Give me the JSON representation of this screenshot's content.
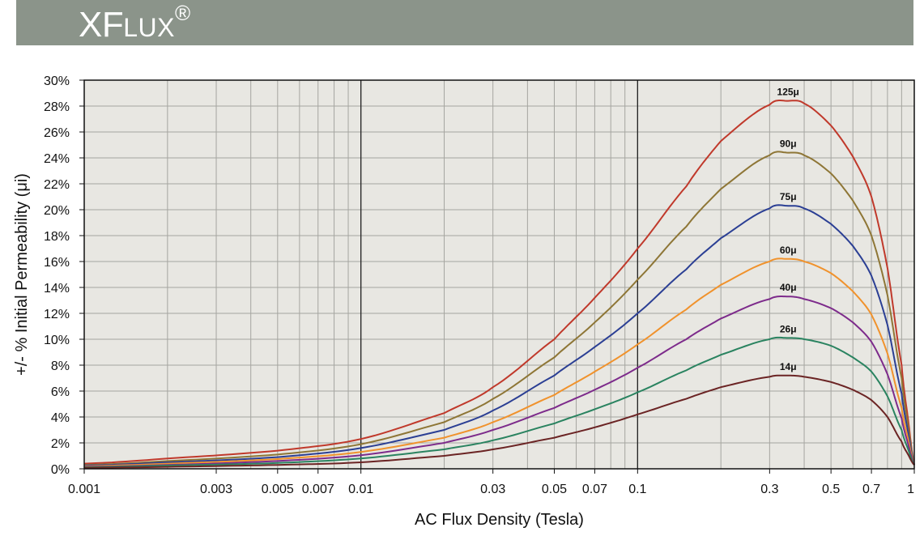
{
  "header": {
    "brand_prefix": "XF",
    "brand_suffix": "LUX",
    "brand_mark": "®",
    "background_color": "#8b948a"
  },
  "chart_data": {
    "type": "line",
    "xlabel": "AC Flux Density (Tesla)",
    "ylabel": "+/- % Initial Permeability (μi)",
    "x_scale": "log",
    "xlim": [
      0.001,
      1
    ],
    "ylim": [
      0,
      30
    ],
    "grid": true,
    "plot_background": "#e8e7e2",
    "x_ticks": [
      {
        "value": 0.001,
        "label": "0.001"
      },
      {
        "value": 0.003,
        "label": "0.003"
      },
      {
        "value": 0.005,
        "label": "0.005"
      },
      {
        "value": 0.007,
        "label": "0.007"
      },
      {
        "value": 0.01,
        "label": "0.01"
      },
      {
        "value": 0.03,
        "label": "0.03"
      },
      {
        "value": 0.05,
        "label": "0.05"
      },
      {
        "value": 0.07,
        "label": "0.07"
      },
      {
        "value": 0.1,
        "label": "0.1"
      },
      {
        "value": 0.3,
        "label": "0.3"
      },
      {
        "value": 0.5,
        "label": "0.5"
      },
      {
        "value": 0.7,
        "label": "0.7"
      },
      {
        "value": 1,
        "label": "1"
      }
    ],
    "y_ticks": [
      {
        "value": 0,
        "label": "0%"
      },
      {
        "value": 2,
        "label": "2%"
      },
      {
        "value": 4,
        "label": "4%"
      },
      {
        "value": 6,
        "label": "6%"
      },
      {
        "value": 8,
        "label": "8%"
      },
      {
        "value": 10,
        "label": "10%"
      },
      {
        "value": 12,
        "label": "12%"
      },
      {
        "value": 14,
        "label": "14%"
      },
      {
        "value": 16,
        "label": "16%"
      },
      {
        "value": 18,
        "label": "18%"
      },
      {
        "value": 20,
        "label": "20%"
      },
      {
        "value": 22,
        "label": "22%"
      },
      {
        "value": 24,
        "label": "24%"
      },
      {
        "value": 26,
        "label": "26%"
      },
      {
        "value": 28,
        "label": "28%"
      },
      {
        "value": 30,
        "label": "30%"
      }
    ],
    "x": [
      0.001,
      0.002,
      0.005,
      0.01,
      0.02,
      0.03,
      0.05,
      0.07,
      0.1,
      0.15,
      0.2,
      0.3,
      0.35,
      0.4,
      0.5,
      0.6,
      0.7,
      0.8,
      0.9,
      0.95,
      1
    ],
    "series": [
      {
        "name": "125μ",
        "color": "#c0392b",
        "values": [
          0.4,
          0.8,
          1.4,
          2.3,
          4.3,
          6.3,
          10.0,
          13.2,
          17.0,
          21.8,
          25.3,
          28.1,
          28.4,
          28.2,
          26.5,
          24.1,
          21.0,
          15.5,
          8.0,
          3.8,
          0.3
        ]
      },
      {
        "name": "90μ",
        "color": "#8e7636",
        "values": [
          0.3,
          0.6,
          1.1,
          1.9,
          3.6,
          5.4,
          8.6,
          11.3,
          14.6,
          18.7,
          21.6,
          24.2,
          24.4,
          24.2,
          22.8,
          20.7,
          18.0,
          13.4,
          7.0,
          3.3,
          0.3
        ]
      },
      {
        "name": "75μ",
        "color": "#2b3f94",
        "values": [
          0.25,
          0.5,
          0.9,
          1.6,
          3.0,
          4.5,
          7.2,
          9.4,
          12.0,
          15.4,
          17.8,
          20.1,
          20.3,
          20.1,
          18.9,
          17.2,
          14.9,
          11.1,
          5.8,
          2.8,
          0.3
        ]
      },
      {
        "name": "60μ",
        "color": "#f0922c",
        "values": [
          0.2,
          0.4,
          0.75,
          1.3,
          2.4,
          3.6,
          5.7,
          7.5,
          9.6,
          12.3,
          14.2,
          16.0,
          16.2,
          16.0,
          15.1,
          13.7,
          11.9,
          8.9,
          4.7,
          2.3,
          0.3
        ]
      },
      {
        "name": "40μ",
        "color": "#7d2b8b",
        "values": [
          0.15,
          0.3,
          0.6,
          1.05,
          2.0,
          3.0,
          4.7,
          6.1,
          7.8,
          10.0,
          11.6,
          13.1,
          13.3,
          13.1,
          12.4,
          11.3,
          9.8,
          7.3,
          3.9,
          1.9,
          0.3
        ]
      },
      {
        "name": "26μ",
        "color": "#2a8360",
        "values": [
          0.12,
          0.25,
          0.45,
          0.8,
          1.5,
          2.2,
          3.5,
          4.6,
          5.9,
          7.6,
          8.8,
          10.0,
          10.1,
          10.0,
          9.5,
          8.6,
          7.5,
          5.6,
          3.0,
          1.5,
          0.3
        ]
      },
      {
        "name": "14μ",
        "color": "#6b2424",
        "values": [
          0.08,
          0.15,
          0.3,
          0.5,
          1.0,
          1.5,
          2.4,
          3.2,
          4.2,
          5.4,
          6.3,
          7.1,
          7.2,
          7.1,
          6.7,
          6.1,
          5.3,
          4.0,
          2.1,
          1.1,
          0.3
        ]
      }
    ]
  }
}
